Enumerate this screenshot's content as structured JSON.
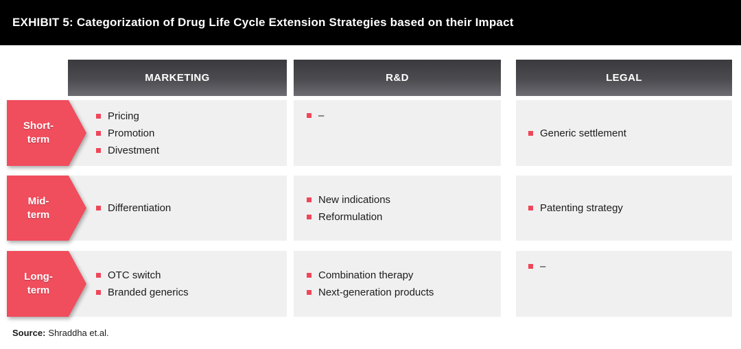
{
  "title": "EXHIBIT 5: Categorization of Drug Life Cycle Extension Strategies based on their Impact",
  "columns": [
    {
      "label": "MARKETING"
    },
    {
      "label": "R&D"
    },
    {
      "label": "LEGAL"
    }
  ],
  "rows": [
    {
      "label_line1": "Short-",
      "label_line2": "term",
      "cells": [
        {
          "items": [
            "Pricing",
            "Promotion",
            "Divestment"
          ]
        },
        {
          "items": [
            "–"
          ]
        },
        {
          "items": [
            "Generic settlement"
          ]
        }
      ]
    },
    {
      "label_line1": "Mid-",
      "label_line2": "term",
      "cells": [
        {
          "items": [
            "Differentiation"
          ]
        },
        {
          "items": [
            "New indications",
            "Reformulation"
          ]
        },
        {
          "items": [
            "Patenting strategy"
          ]
        }
      ]
    },
    {
      "label_line1": "Long-",
      "label_line2": "term",
      "cells": [
        {
          "items": [
            "OTC switch",
            "Branded generics"
          ]
        },
        {
          "items": [
            "Combination therapy",
            "Next-generation products"
          ]
        },
        {
          "items": [
            "–"
          ]
        }
      ]
    }
  ],
  "source": {
    "label": "Source:",
    "text": "Shraddha et.al."
  },
  "colors": {
    "titlebar_bg": "#000000",
    "arrow_red": "#f04d5d",
    "bullet_red": "#ef4659",
    "header_gradient_top": "#3a3a3e",
    "header_gradient_bottom": "#6c6c72",
    "cell_bg": "#f0f0f0",
    "text": "#1b1b1b"
  }
}
